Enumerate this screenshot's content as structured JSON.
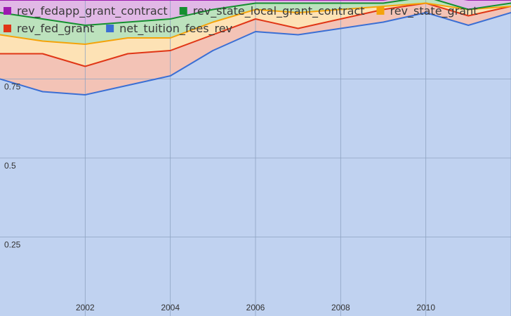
{
  "chart_data": {
    "type": "area",
    "stacked": true,
    "normalized": true,
    "title": "",
    "xlabel": "",
    "ylabel": "",
    "xlim": [
      2000,
      2012
    ],
    "ylim": [
      0,
      1
    ],
    "grid": true,
    "legend_position": "top-left",
    "x": [
      2000,
      2001,
      2002,
      2003,
      2004,
      2005,
      2006,
      2007,
      2008,
      2009,
      2010,
      2011,
      2012
    ],
    "x_ticks": [
      "2002",
      "2004",
      "2006",
      "2008",
      "2010"
    ],
    "y_ticks": [
      "0.25",
      "0.5",
      "0.75"
    ],
    "series": [
      {
        "name": "net_tuition_fees_rev",
        "color": "#3b6fd4",
        "fill": "#c0d2f0",
        "values": [
          0.75,
          0.71,
          0.7,
          0.73,
          0.76,
          0.84,
          0.9,
          0.89,
          0.91,
          0.93,
          0.96,
          0.92,
          0.96
        ]
      },
      {
        "name": "rev_fed_grant",
        "color": "#e03616",
        "fill": "#f3c3b6",
        "values": [
          0.08,
          0.12,
          0.09,
          0.1,
          0.08,
          0.05,
          0.04,
          0.02,
          0.03,
          0.04,
          0.03,
          0.03,
          0.02
        ]
      },
      {
        "name": "rev_state_grant",
        "color": "#f4a30a",
        "fill": "#fde2b5",
        "values": [
          0.06,
          0.04,
          0.07,
          0.05,
          0.04,
          0.04,
          0.03,
          0.05,
          0.03,
          0.01,
          0.0,
          0.02,
          0.0
        ]
      },
      {
        "name": "rev_state_local_grant_contract",
        "color": "#148f2f",
        "fill": "#bce2bd",
        "values": [
          0.07,
          0.07,
          0.06,
          0.05,
          0.06,
          0.04,
          0.02,
          0.03,
          0.02,
          0.01,
          0.02,
          0.0,
          0.01
        ]
      },
      {
        "name": "rev_fedapp_grant_contract",
        "color": "#9c1bb0",
        "fill": "#e1b8e6",
        "values": [
          0.04,
          0.06,
          0.08,
          0.07,
          0.06,
          0.03,
          0.01,
          0.01,
          0.01,
          0.01,
          0.01,
          0.03,
          0.01
        ]
      }
    ],
    "legend_rows": [
      [
        {
          "name": "rev_fedapp_grant_contract",
          "color": "#9c1bb0"
        },
        {
          "name": "rev_state_local_grant_contract",
          "color": "#148f2f"
        },
        {
          "name": "rev_state_grant",
          "color": "#f4a30a"
        }
      ],
      [
        {
          "name": "rev_fed_grant",
          "color": "#e03616"
        },
        {
          "name": "net_tuition_fees_rev",
          "color": "#3b6fd4"
        }
      ]
    ]
  }
}
